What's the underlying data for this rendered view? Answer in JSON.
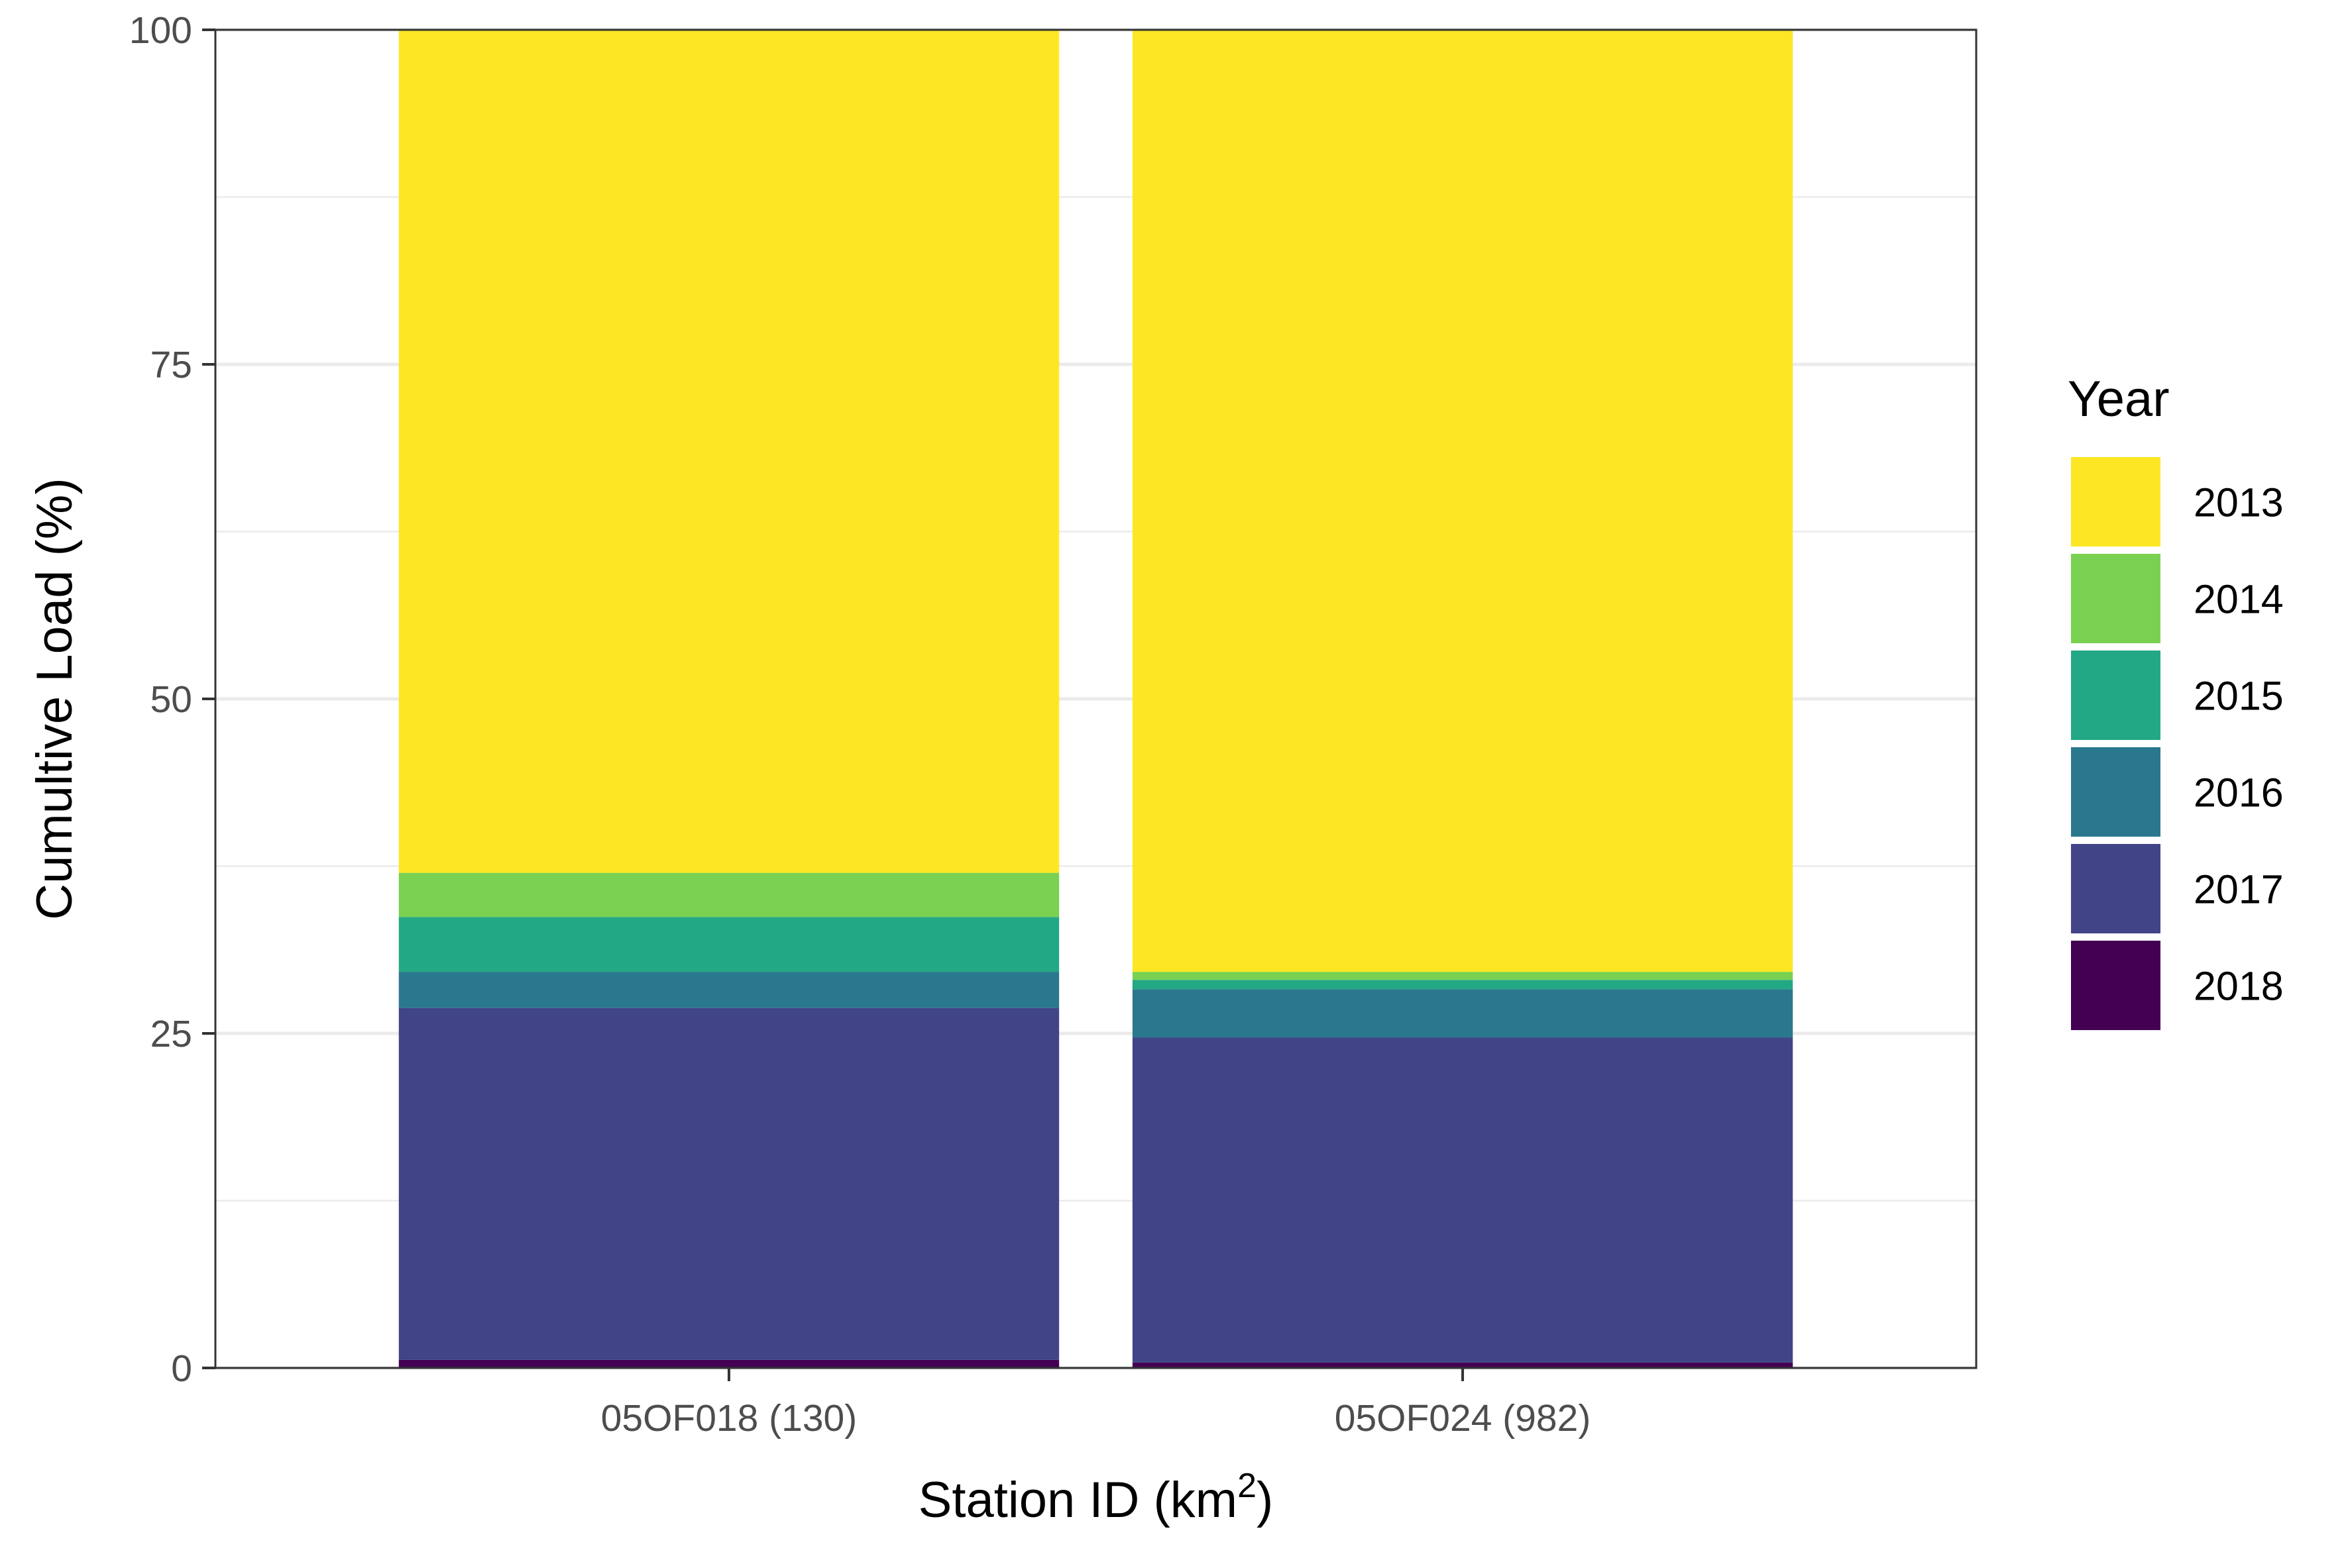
{
  "chart_data": {
    "type": "bar",
    "stacked": true,
    "categories": [
      "05OF018 (130)",
      "05OF024 (982)"
    ],
    "series": [
      {
        "name": "2018",
        "color": "#440154",
        "values": [
          0.6,
          0.4
        ]
      },
      {
        "name": "2017",
        "color": "#414487",
        "values": [
          26.3,
          24.3
        ]
      },
      {
        "name": "2016",
        "color": "#2A788E",
        "values": [
          2.7,
          3.6
        ]
      },
      {
        "name": "2015",
        "color": "#22A884",
        "values": [
          4.1,
          0.7
        ]
      },
      {
        "name": "2014",
        "color": "#7AD151",
        "values": [
          3.3,
          0.6
        ]
      },
      {
        "name": "2013",
        "color": "#FDE725",
        "values": [
          63.0,
          70.4
        ]
      }
    ],
    "title": "",
    "xlabel": "Station ID (km",
    "xlabel_superscript": "2",
    "xlabel_suffix": ")",
    "ylabel": "Cumultive Load (%)",
    "ylim": [
      0,
      100
    ],
    "yticks": [
      0,
      25,
      50,
      75,
      100
    ],
    "grid": true,
    "legend": {
      "title": "Year",
      "position": "right",
      "entries": [
        "2013",
        "2014",
        "2015",
        "2016",
        "2017",
        "2018"
      ]
    }
  }
}
